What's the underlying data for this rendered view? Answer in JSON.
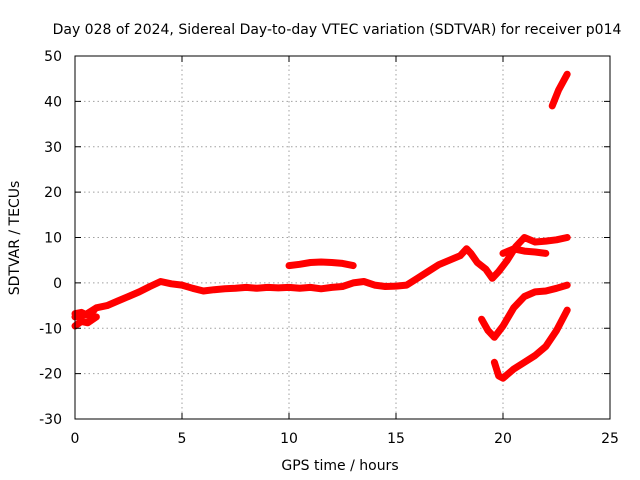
{
  "chart_data": {
    "type": "line",
    "title": "Day 028 of 2024, Sidereal Day-to-day VTEC variation (SDTVAR) for receiver p014",
    "xlabel": "GPS time / hours",
    "ylabel": "SDTVAR / TECUs",
    "xlim": [
      0,
      25
    ],
    "ylim": [
      -30,
      50
    ],
    "xticks": [
      0,
      5,
      10,
      15,
      20,
      25
    ],
    "yticks": [
      -30,
      -20,
      -10,
      0,
      10,
      20,
      30,
      40,
      50
    ],
    "grid": true,
    "color": "#ff0000",
    "segments": [
      {
        "points": [
          [
            0.0,
            -7.5
          ],
          [
            0.5,
            -7
          ],
          [
            1.0,
            -5.5
          ],
          [
            1.5,
            -5
          ],
          [
            2.0,
            -4
          ],
          [
            2.5,
            -3
          ],
          [
            3.0,
            -2
          ],
          [
            3.5,
            -0.8
          ],
          [
            4.0,
            0.3
          ],
          [
            4.5,
            -0.2
          ],
          [
            5.0,
            -0.5
          ],
          [
            5.5,
            -1.2
          ],
          [
            6.0,
            -1.8
          ],
          [
            6.5,
            -1.5
          ],
          [
            7.0,
            -1.3
          ],
          [
            7.5,
            -1.2
          ],
          [
            8.0,
            -1.0
          ],
          [
            8.5,
            -1.2
          ],
          [
            9.0,
            -1.0
          ],
          [
            9.5,
            -1.1
          ],
          [
            10.0,
            -1.0
          ],
          [
            10.5,
            -1.2
          ],
          [
            11.0,
            -1.0
          ],
          [
            11.5,
            -1.3
          ],
          [
            12.0,
            -1.0
          ],
          [
            12.5,
            -0.8
          ],
          [
            13.0,
            0.0
          ],
          [
            13.5,
            0.3
          ],
          [
            14.0,
            -0.5
          ],
          [
            14.5,
            -0.8
          ],
          [
            15.0,
            -0.7
          ],
          [
            15.5,
            -0.5
          ],
          [
            16.0,
            1.0
          ],
          [
            16.5,
            2.5
          ],
          [
            17.0,
            4.0
          ],
          [
            17.5,
            5.0
          ],
          [
            18.0,
            6.0
          ],
          [
            18.3,
            7.5
          ],
          [
            18.5,
            6.5
          ],
          [
            18.8,
            4.5
          ],
          [
            19.2,
            3.0
          ],
          [
            19.5,
            1.0
          ],
          [
            19.8,
            2.5
          ],
          [
            20.2,
            5.0
          ],
          [
            20.6,
            8.0
          ],
          [
            21.0,
            10.0
          ],
          [
            21.5,
            9.0
          ],
          [
            22.0,
            9.2
          ],
          [
            22.5,
            9.5
          ],
          [
            23.0,
            10.0
          ]
        ]
      },
      {
        "points": [
          [
            0.0,
            -9.5
          ],
          [
            0.3,
            -8.5
          ],
          [
            0.6,
            -8.8
          ],
          [
            1.0,
            -7.5
          ]
        ]
      },
      {
        "points": [
          [
            0.0,
            -6.8
          ],
          [
            0.3,
            -6.5
          ],
          [
            0.6,
            -7.2
          ],
          [
            0.9,
            -6.0
          ]
        ]
      },
      {
        "points": [
          [
            10.0,
            3.8
          ],
          [
            10.5,
            4.1
          ],
          [
            11.0,
            4.5
          ],
          [
            11.5,
            4.6
          ],
          [
            12.0,
            4.5
          ],
          [
            12.5,
            4.3
          ],
          [
            13.0,
            3.8
          ]
        ]
      },
      {
        "points": [
          [
            19.0,
            -8
          ],
          [
            19.3,
            -10.5
          ],
          [
            19.6,
            -12.0
          ],
          [
            20.0,
            -9.5
          ],
          [
            20.5,
            -5.5
          ],
          [
            21.0,
            -3.0
          ],
          [
            21.5,
            -2.0
          ],
          [
            22.0,
            -1.8
          ],
          [
            22.5,
            -1.2
          ],
          [
            23.0,
            -0.5
          ]
        ]
      },
      {
        "points": [
          [
            19.6,
            -17.5
          ],
          [
            19.8,
            -20.5
          ],
          [
            20.0,
            -21.0
          ],
          [
            20.5,
            -19.0
          ],
          [
            21.0,
            -17.5
          ],
          [
            21.5,
            -16.0
          ],
          [
            22.0,
            -14.0
          ],
          [
            22.5,
            -10.5
          ],
          [
            23.0,
            -6.0
          ]
        ]
      },
      {
        "points": [
          [
            20.0,
            6.5
          ],
          [
            20.5,
            7.5
          ],
          [
            21.0,
            7.0
          ],
          [
            21.5,
            6.8
          ],
          [
            22.0,
            6.5
          ]
        ]
      },
      {
        "points": [
          [
            22.3,
            39.0
          ],
          [
            22.6,
            42.5
          ],
          [
            23.0,
            46.0
          ]
        ]
      }
    ]
  }
}
